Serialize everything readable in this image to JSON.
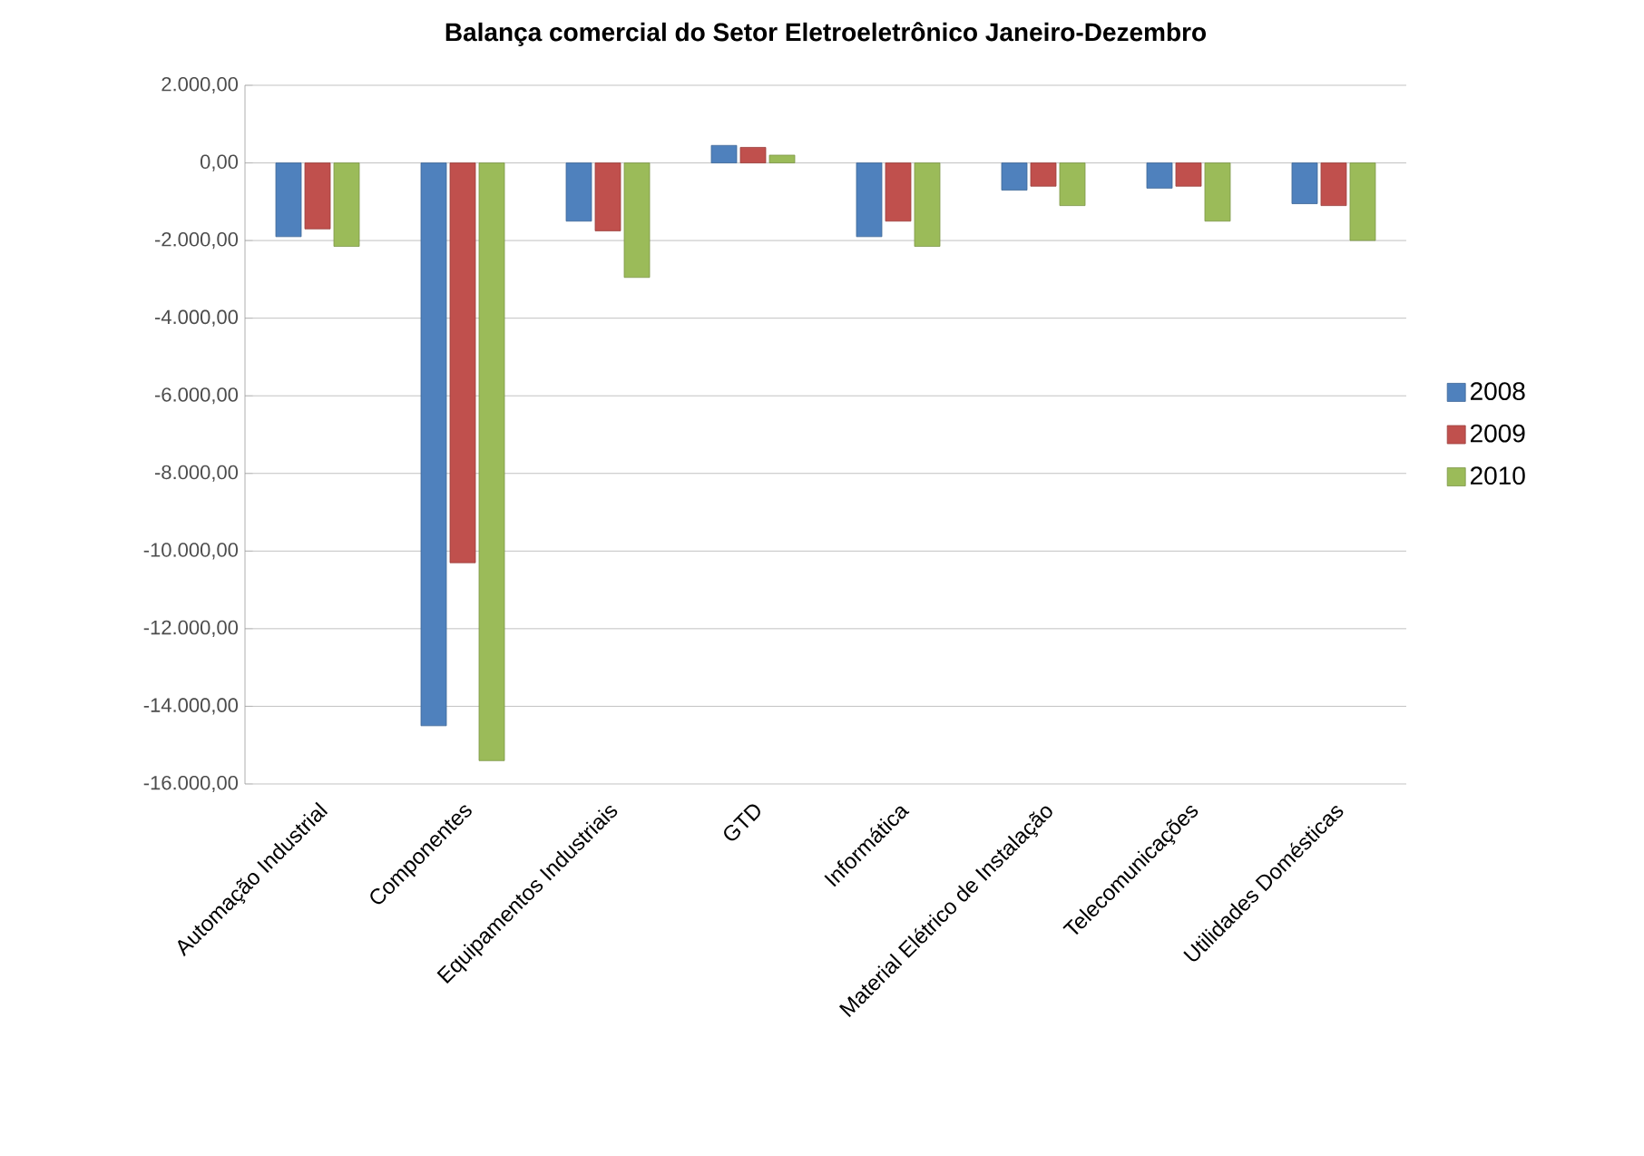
{
  "chart_data": {
    "type": "bar",
    "title": "Balança comercial do Setor Eletroeletrônico Janeiro-Dezembro",
    "categories": [
      "Automação Industrial",
      "Componentes",
      "Equipamentos Industriais",
      "GTD",
      "Informática",
      "Material Elétrico de Instalação",
      "Telecomunicações",
      "Utilidades Domésticas"
    ],
    "series": [
      {
        "name": "2008",
        "color": "#4f81bd",
        "values": [
          -1900,
          -14500,
          -1500,
          450,
          -1900,
          -700,
          -650,
          -1050
        ]
      },
      {
        "name": "2009",
        "color": "#c0504d",
        "values": [
          -1700,
          -10300,
          -1750,
          400,
          -1500,
          -600,
          -600,
          -1100
        ]
      },
      {
        "name": "2010",
        "color": "#9bbb59",
        "values": [
          -2150,
          -15400,
          -2950,
          200,
          -2150,
          -1100,
          -1500,
          -2000
        ]
      }
    ],
    "ylim": [
      -16000,
      2000
    ],
    "yticks": [
      {
        "value": -16000,
        "label": "-16.000,00"
      },
      {
        "value": -14000,
        "label": "-14.000,00"
      },
      {
        "value": -12000,
        "label": "-12.000,00"
      },
      {
        "value": -10000,
        "label": "-10.000,00"
      },
      {
        "value": -8000,
        "label": "-8.000,00"
      },
      {
        "value": -6000,
        "label": "-6.000,00"
      },
      {
        "value": -4000,
        "label": "-4.000,00"
      },
      {
        "value": -2000,
        "label": "-2.000,00"
      },
      {
        "value": 0,
        "label": "0,00"
      },
      {
        "value": 2000,
        "label": "2.000,00"
      }
    ],
    "grid": "y",
    "legend": "right"
  }
}
